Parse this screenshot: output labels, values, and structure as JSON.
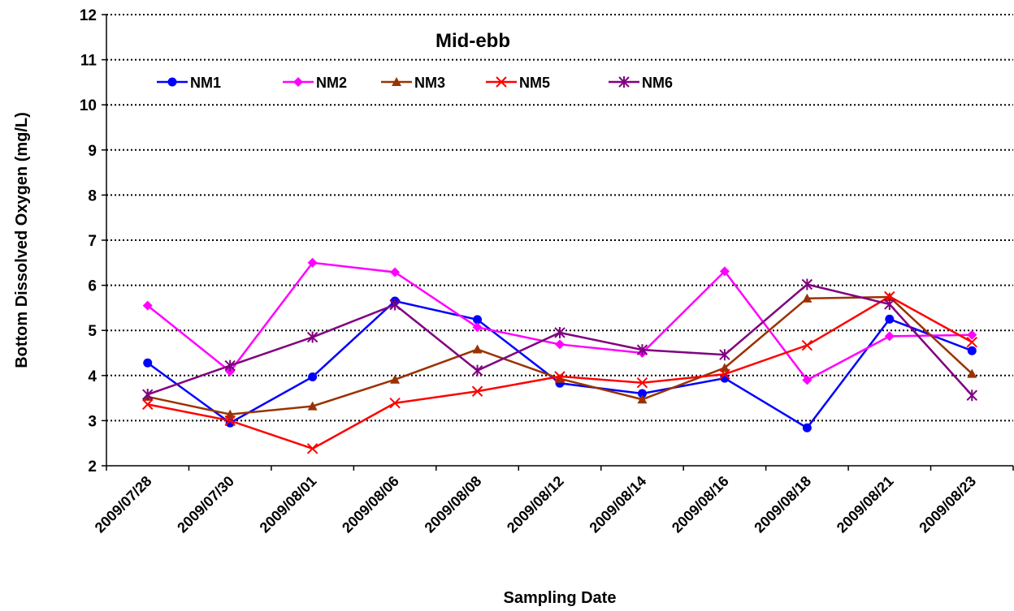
{
  "chart_data": {
    "type": "line",
    "title": "Mid-ebb",
    "xlabel": "Sampling Date",
    "ylabel": "Bottom Dissolved Oxygen (mg/L)",
    "ylim": [
      2,
      12
    ],
    "yticks": [
      2,
      3,
      4,
      5,
      6,
      7,
      8,
      9,
      10,
      11,
      12
    ],
    "grid": "horizontal dotted",
    "legend": "top-left inside plot",
    "categories": [
      "2009/07/28",
      "2009/07/30",
      "2009/08/01",
      "2009/08/06",
      "2009/08/08",
      "2009/08/12",
      "2009/08/14",
      "2009/08/16",
      "2009/08/18",
      "2009/08/21",
      "2009/08/23"
    ],
    "series": [
      {
        "name": "NM1",
        "color": "#0000FF",
        "marker": "circle",
        "values": [
          4.28,
          2.95,
          3.97,
          5.65,
          5.24,
          3.83,
          3.6,
          3.94,
          2.84,
          5.25,
          4.55
        ]
      },
      {
        "name": "NM2",
        "color": "#FF00FF",
        "marker": "diamond",
        "values": [
          5.55,
          4.09,
          6.5,
          6.29,
          5.07,
          4.69,
          4.5,
          6.31,
          3.9,
          4.87,
          4.9
        ]
      },
      {
        "name": "NM3",
        "color": "#993300",
        "marker": "triangle",
        "values": [
          3.53,
          3.14,
          3.32,
          3.91,
          4.58,
          3.93,
          3.47,
          4.17,
          5.71,
          5.74,
          4.04
        ]
      },
      {
        "name": "NM5",
        "color": "#FF0000",
        "marker": "x",
        "values": [
          3.36,
          3.0,
          2.38,
          3.39,
          3.65,
          3.98,
          3.84,
          4.03,
          4.67,
          5.75,
          4.74
        ]
      },
      {
        "name": "NM6",
        "color": "#800080",
        "marker": "star",
        "values": [
          3.58,
          4.22,
          4.85,
          5.57,
          4.11,
          4.95,
          4.57,
          4.46,
          6.02,
          5.58,
          3.56
        ]
      }
    ]
  }
}
